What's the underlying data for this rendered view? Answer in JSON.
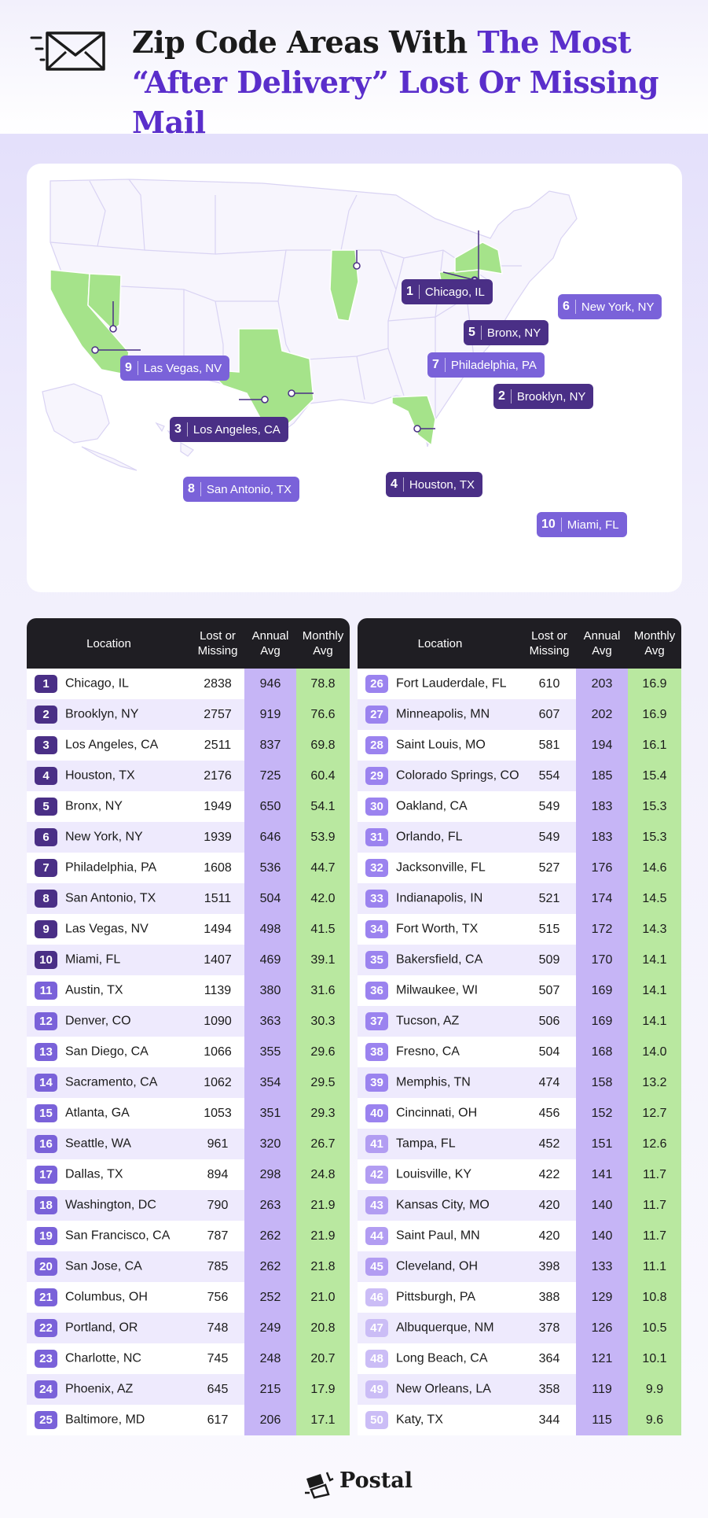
{
  "title": {
    "part1": "Zip Code Areas With ",
    "part2": "The Most “After Delivery” Lost Or Missing Mail"
  },
  "icons": {
    "header": "envelope-with-motion-lines-icon",
    "brand": "postal-logo-icon"
  },
  "colors": {
    "accent": "#5a2ecb",
    "label": "#4a2f86",
    "highlight_state": "#a5e38a",
    "annual_col": "#c6b5f6",
    "monthly_col": "#b9e8a0",
    "header_bg": "#1f1e23"
  },
  "map": {
    "labels": [
      {
        "rank": "1",
        "name": "Chicago, IL"
      },
      {
        "rank": "2",
        "name": "Brooklyn, NY"
      },
      {
        "rank": "3",
        "name": "Los Angeles, CA"
      },
      {
        "rank": "4",
        "name": "Houston, TX"
      },
      {
        "rank": "5",
        "name": "Bronx, NY"
      },
      {
        "rank": "6",
        "name": "New York, NY"
      },
      {
        "rank": "7",
        "name": "Philadelphia, PA"
      },
      {
        "rank": "8",
        "name": "San Antonio, TX"
      },
      {
        "rank": "9",
        "name": "Las Vegas, NV"
      },
      {
        "rank": "10",
        "name": "Miami, FL"
      }
    ]
  },
  "table": {
    "headers": {
      "location": "Location",
      "lost_1": "Lost or",
      "lost_2": "Missing",
      "annual_1": "Annual",
      "annual_2": "Avg",
      "monthly_1": "Monthly",
      "monthly_2": "Avg"
    },
    "rows": [
      {
        "rank": "1",
        "location": "Chicago, IL",
        "lost": "2838",
        "annual": "946",
        "monthly": "78.8"
      },
      {
        "rank": "2",
        "location": "Brooklyn, NY",
        "lost": "2757",
        "annual": "919",
        "monthly": "76.6"
      },
      {
        "rank": "3",
        "location": "Los Angeles, CA",
        "lost": "2511",
        "annual": "837",
        "monthly": "69.8"
      },
      {
        "rank": "4",
        "location": "Houston, TX",
        "lost": "2176",
        "annual": "725",
        "monthly": "60.4"
      },
      {
        "rank": "5",
        "location": "Bronx, NY",
        "lost": "1949",
        "annual": "650",
        "monthly": "54.1"
      },
      {
        "rank": "6",
        "location": "New York, NY",
        "lost": "1939",
        "annual": "646",
        "monthly": "53.9"
      },
      {
        "rank": "7",
        "location": "Philadelphia, PA",
        "lost": "1608",
        "annual": "536",
        "monthly": "44.7"
      },
      {
        "rank": "8",
        "location": "San Antonio, TX",
        "lost": "1511",
        "annual": "504",
        "monthly": "42.0"
      },
      {
        "rank": "9",
        "location": "Las Vegas, NV",
        "lost": "1494",
        "annual": "498",
        "monthly": "41.5"
      },
      {
        "rank": "10",
        "location": "Miami, FL",
        "lost": "1407",
        "annual": "469",
        "monthly": "39.1"
      },
      {
        "rank": "11",
        "location": "Austin, TX",
        "lost": "1139",
        "annual": "380",
        "monthly": "31.6"
      },
      {
        "rank": "12",
        "location": "Denver, CO",
        "lost": "1090",
        "annual": "363",
        "monthly": "30.3"
      },
      {
        "rank": "13",
        "location": "San Diego, CA",
        "lost": "1066",
        "annual": "355",
        "monthly": "29.6"
      },
      {
        "rank": "14",
        "location": "Sacramento, CA",
        "lost": "1062",
        "annual": "354",
        "monthly": "29.5"
      },
      {
        "rank": "15",
        "location": "Atlanta, GA",
        "lost": "1053",
        "annual": "351",
        "monthly": "29.3"
      },
      {
        "rank": "16",
        "location": "Seattle, WA",
        "lost": "961",
        "annual": "320",
        "monthly": "26.7"
      },
      {
        "rank": "17",
        "location": "Dallas, TX",
        "lost": "894",
        "annual": "298",
        "monthly": "24.8"
      },
      {
        "rank": "18",
        "location": "Washington, DC",
        "lost": "790",
        "annual": "263",
        "monthly": "21.9"
      },
      {
        "rank": "19",
        "location": "San Francisco, CA",
        "lost": "787",
        "annual": "262",
        "monthly": "21.9"
      },
      {
        "rank": "20",
        "location": "San Jose, CA",
        "lost": "785",
        "annual": "262",
        "monthly": "21.8"
      },
      {
        "rank": "21",
        "location": "Columbus, OH",
        "lost": "756",
        "annual": "252",
        "monthly": "21.0"
      },
      {
        "rank": "22",
        "location": "Portland, OR",
        "lost": "748",
        "annual": "249",
        "monthly": "20.8"
      },
      {
        "rank": "23",
        "location": "Charlotte, NC",
        "lost": "745",
        "annual": "248",
        "monthly": "20.7"
      },
      {
        "rank": "24",
        "location": "Phoenix, AZ",
        "lost": "645",
        "annual": "215",
        "monthly": "17.9"
      },
      {
        "rank": "25",
        "location": "Baltimore, MD",
        "lost": "617",
        "annual": "206",
        "monthly": "17.1"
      },
      {
        "rank": "26",
        "location": "Fort Lauderdale, FL",
        "lost": "610",
        "annual": "203",
        "monthly": "16.9"
      },
      {
        "rank": "27",
        "location": "Minneapolis, MN",
        "lost": "607",
        "annual": "202",
        "monthly": "16.9"
      },
      {
        "rank": "28",
        "location": "Saint Louis, MO",
        "lost": "581",
        "annual": "194",
        "monthly": "16.1"
      },
      {
        "rank": "29",
        "location": "Colorado Springs, CO",
        "lost": "554",
        "annual": "185",
        "monthly": "15.4"
      },
      {
        "rank": "30",
        "location": "Oakland, CA",
        "lost": "549",
        "annual": "183",
        "monthly": "15.3"
      },
      {
        "rank": "31",
        "location": "Orlando, FL",
        "lost": "549",
        "annual": "183",
        "monthly": "15.3"
      },
      {
        "rank": "32",
        "location": "Jacksonville, FL",
        "lost": "527",
        "annual": "176",
        "monthly": "14.6"
      },
      {
        "rank": "33",
        "location": "Indianapolis, IN",
        "lost": "521",
        "annual": "174",
        "monthly": "14.5"
      },
      {
        "rank": "34",
        "location": "Fort Worth, TX",
        "lost": "515",
        "annual": "172",
        "monthly": "14.3"
      },
      {
        "rank": "35",
        "location": "Bakersfield, CA",
        "lost": "509",
        "annual": "170",
        "monthly": "14.1"
      },
      {
        "rank": "36",
        "location": "Milwaukee, WI",
        "lost": "507",
        "annual": "169",
        "monthly": "14.1"
      },
      {
        "rank": "37",
        "location": "Tucson, AZ",
        "lost": "506",
        "annual": "169",
        "monthly": "14.1"
      },
      {
        "rank": "38",
        "location": "Fresno, CA",
        "lost": "504",
        "annual": "168",
        "monthly": "14.0"
      },
      {
        "rank": "39",
        "location": "Memphis, TN",
        "lost": "474",
        "annual": "158",
        "monthly": "13.2"
      },
      {
        "rank": "40",
        "location": "Cincinnati, OH",
        "lost": "456",
        "annual": "152",
        "monthly": "12.7"
      },
      {
        "rank": "41",
        "location": "Tampa, FL",
        "lost": "452",
        "annual": "151",
        "monthly": "12.6"
      },
      {
        "rank": "42",
        "location": "Louisville, KY",
        "lost": "422",
        "annual": "141",
        "monthly": "11.7"
      },
      {
        "rank": "43",
        "location": "Kansas City, MO",
        "lost": "420",
        "annual": "140",
        "monthly": "11.7"
      },
      {
        "rank": "44",
        "location": "Saint Paul, MN",
        "lost": "420",
        "annual": "140",
        "monthly": "11.7"
      },
      {
        "rank": "45",
        "location": "Cleveland, OH",
        "lost": "398",
        "annual": "133",
        "monthly": "11.1"
      },
      {
        "rank": "46",
        "location": "Pittsburgh, PA",
        "lost": "388",
        "annual": "129",
        "monthly": "10.8"
      },
      {
        "rank": "47",
        "location": "Albuquerque, NM",
        "lost": "378",
        "annual": "126",
        "monthly": "10.5"
      },
      {
        "rank": "48",
        "location": "Long Beach, CA",
        "lost": "364",
        "annual": "121",
        "monthly": "10.1"
      },
      {
        "rank": "49",
        "location": "New Orleans, LA",
        "lost": "358",
        "annual": "119",
        "monthly": "9.9"
      },
      {
        "rank": "50",
        "location": "Katy, TX",
        "lost": "344",
        "annual": "115",
        "monthly": "9.6"
      }
    ]
  },
  "brand": {
    "name": "Postal"
  }
}
